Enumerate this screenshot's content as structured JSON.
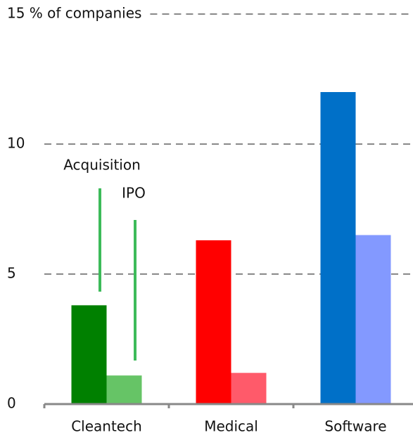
{
  "chart_data": {
    "type": "bar",
    "categories": [
      "Cleantech",
      "Medical",
      "Software"
    ],
    "series": [
      {
        "name": "Acquisition",
        "colors": [
          "#008000",
          "#ff0000",
          "#0070c8"
        ],
        "values": [
          3.8,
          6.3,
          12
        ]
      },
      {
        "name": "IPO",
        "colors": [
          "#66c466",
          "#ff5a6a",
          "#8399ff"
        ],
        "values": [
          1.1,
          1.2,
          6.5
        ]
      }
    ],
    "ylim": [
      0,
      15
    ],
    "yticks": [
      0,
      5,
      10,
      {
        "value": 15,
        "label": "15 % of companies"
      }
    ],
    "grid": true,
    "annotations": [
      "Acquisition",
      "IPO"
    ]
  }
}
